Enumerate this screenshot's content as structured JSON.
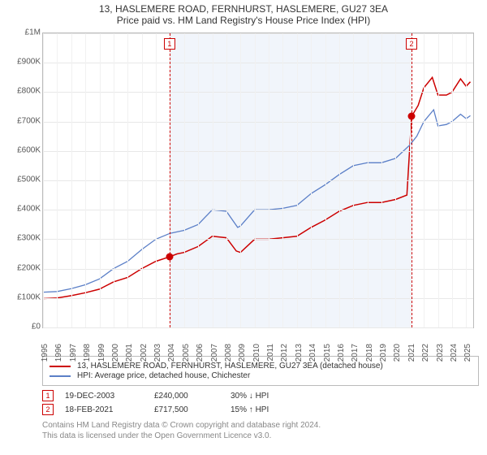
{
  "title": "13, HASLEMERE ROAD, FERNHURST, HASLEMERE, GU27 3EA",
  "subtitle": "Price paid vs. HM Land Registry's House Price Index (HPI)",
  "chart": {
    "type": "line",
    "background_color": "#ffffff",
    "grid_color": "#e8e8e8",
    "border_color": "#bbbbbb",
    "shade_color": "#e6ecf7",
    "x": {
      "min": 1995,
      "max": 2025.5,
      "ticks": [
        1995,
        1996,
        1997,
        1998,
        1999,
        2000,
        2001,
        2002,
        2003,
        2004,
        2005,
        2006,
        2007,
        2008,
        2009,
        2010,
        2011,
        2012,
        2013,
        2014,
        2015,
        2016,
        2017,
        2018,
        2019,
        2020,
        2021,
        2022,
        2023,
        2024,
        2025
      ],
      "label_fontsize": 10,
      "rotation": -90
    },
    "y": {
      "min": 0,
      "max": 1000000,
      "ticks": [
        {
          "v": 0,
          "label": "£0"
        },
        {
          "v": 100000,
          "label": "£100K"
        },
        {
          "v": 200000,
          "label": "£200K"
        },
        {
          "v": 300000,
          "label": "£300K"
        },
        {
          "v": 400000,
          "label": "£400K"
        },
        {
          "v": 500000,
          "label": "£500K"
        },
        {
          "v": 600000,
          "label": "£600K"
        },
        {
          "v": 700000,
          "label": "£700K"
        },
        {
          "v": 800000,
          "label": "£800K"
        },
        {
          "v": 900000,
          "label": "£900K"
        },
        {
          "v": 1000000,
          "label": "£1M"
        }
      ],
      "label_fontsize": 10
    },
    "series": [
      {
        "id": "property",
        "label": "13, HASLEMERE ROAD, FERNHURST, HASLEMERE, GU27 3EA (detached house)",
        "color": "#cc0000",
        "line_width": 1.5,
        "data": [
          [
            1995,
            98000
          ],
          [
            1996,
            100000
          ],
          [
            1997,
            108000
          ],
          [
            1998,
            118000
          ],
          [
            1999,
            130000
          ],
          [
            2000,
            155000
          ],
          [
            2001,
            170000
          ],
          [
            2002,
            200000
          ],
          [
            2003,
            225000
          ],
          [
            2003.97,
            240000
          ],
          [
            2004.5,
            250000
          ],
          [
            2005,
            255000
          ],
          [
            2006,
            275000
          ],
          [
            2007,
            310000
          ],
          [
            2008,
            305000
          ],
          [
            2008.7,
            260000
          ],
          [
            2009,
            255000
          ],
          [
            2010,
            300000
          ],
          [
            2011,
            300000
          ],
          [
            2012,
            305000
          ],
          [
            2013,
            310000
          ],
          [
            2014,
            340000
          ],
          [
            2015,
            365000
          ],
          [
            2016,
            395000
          ],
          [
            2017,
            415000
          ],
          [
            2018,
            425000
          ],
          [
            2019,
            425000
          ],
          [
            2020,
            435000
          ],
          [
            2020.8,
            450000
          ],
          [
            2021.13,
            717500
          ],
          [
            2021.6,
            755000
          ],
          [
            2022,
            815000
          ],
          [
            2022.6,
            850000
          ],
          [
            2023,
            790000
          ],
          [
            2023.6,
            790000
          ],
          [
            2024,
            800000
          ],
          [
            2024.6,
            845000
          ],
          [
            2025,
            820000
          ],
          [
            2025.3,
            835000
          ]
        ]
      },
      {
        "id": "hpi",
        "label": "HPI: Average price, detached house, Chichester",
        "color": "#5b7fc7",
        "line_width": 1.3,
        "data": [
          [
            1995,
            120000
          ],
          [
            1996,
            122000
          ],
          [
            1997,
            132000
          ],
          [
            1998,
            145000
          ],
          [
            1999,
            165000
          ],
          [
            2000,
            200000
          ],
          [
            2001,
            225000
          ],
          [
            2002,
            265000
          ],
          [
            2003,
            300000
          ],
          [
            2004,
            320000
          ],
          [
            2005,
            330000
          ],
          [
            2006,
            350000
          ],
          [
            2007,
            400000
          ],
          [
            2008,
            395000
          ],
          [
            2008.8,
            340000
          ],
          [
            2009,
            345000
          ],
          [
            2010,
            400000
          ],
          [
            2011,
            400000
          ],
          [
            2012,
            405000
          ],
          [
            2013,
            415000
          ],
          [
            2014,
            455000
          ],
          [
            2015,
            485000
          ],
          [
            2016,
            520000
          ],
          [
            2017,
            550000
          ],
          [
            2018,
            560000
          ],
          [
            2019,
            560000
          ],
          [
            2020,
            575000
          ],
          [
            2021,
            620000
          ],
          [
            2021.5,
            650000
          ],
          [
            2022,
            700000
          ],
          [
            2022.7,
            740000
          ],
          [
            2023,
            685000
          ],
          [
            2023.6,
            690000
          ],
          [
            2024,
            700000
          ],
          [
            2024.6,
            725000
          ],
          [
            2025,
            710000
          ],
          [
            2025.3,
            720000
          ]
        ]
      }
    ],
    "events": [
      {
        "n": "1",
        "x": 2003.97,
        "date": "19-DEC-2003",
        "price": "£240,000",
        "delta": "30% ↓ HPI",
        "color": "#cc0000",
        "dot_y": 240000
      },
      {
        "n": "2",
        "x": 2021.13,
        "date": "18-FEB-2021",
        "price": "£717,500",
        "delta": "15% ↑ HPI",
        "color": "#cc0000",
        "dot_y": 717500
      }
    ],
    "shade": {
      "from": 2003.97,
      "to": 2021.13
    }
  },
  "attribution": {
    "line1": "Contains HM Land Registry data © Crown copyright and database right 2024.",
    "line2": "This data is licensed under the Open Government Licence v3.0."
  }
}
